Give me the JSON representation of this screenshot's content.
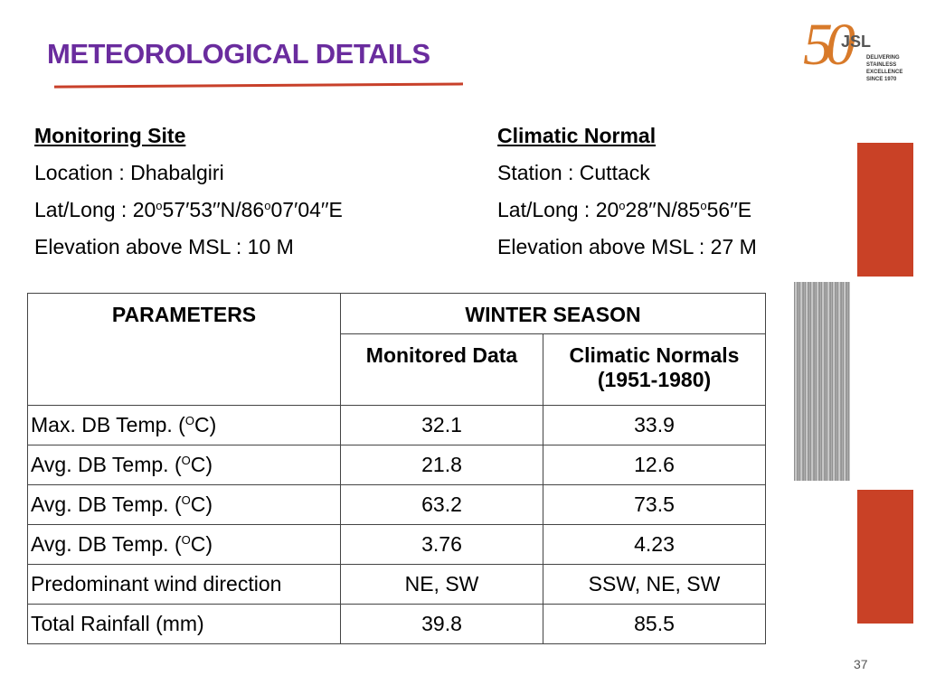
{
  "header": {
    "title": "METEOROLOGICAL DETAILS"
  },
  "logo": {
    "number": "50",
    "brand": "JSL",
    "tagline": [
      "DELIVERING",
      "STAINLESS EXCELLENCE",
      "SINCE 1970"
    ]
  },
  "monitoring_site": {
    "heading": "Monitoring Site",
    "location": "Location  :  Dhabalgiri",
    "lat_long": [
      "Lat/Long :  20",
      "o",
      "57′53′′N/86",
      "o",
      "07′04′′E"
    ],
    "elevation": "Elevation above MSL : 10 M"
  },
  "climatic_normal": {
    "heading": "Climatic Normal",
    "station": "Station  : Cuttack",
    "lat_long": [
      "Lat/Long :  20",
      "o",
      "28′′N/85",
      "o",
      "56′′E"
    ],
    "elevation": "Elevation above MSL : 27 M"
  },
  "table": {
    "header": {
      "parameters": "PARAMETERS",
      "season": "WINTER SEASON",
      "monitored": "Monitored Data",
      "normals": [
        "Climatic Normals",
        "(1951-1980)"
      ]
    },
    "rows": [
      [
        [
          "Max. DB Temp. (",
          "O",
          "C)"
        ],
        "32.1",
        "33.9"
      ],
      [
        [
          "Avg. DB Temp. (",
          "O",
          "C)"
        ],
        "21.8",
        "12.6"
      ],
      [
        [
          "Avg. DB Temp. (",
          "O",
          "C)"
        ],
        "63.2",
        "73.5"
      ],
      [
        [
          "Avg. DB Temp. (",
          "O",
          "C)"
        ],
        "3.76",
        "4.23"
      ],
      [
        [
          "Predominant wind direction"
        ],
        "NE, SW",
        "SSW, NE, SW"
      ],
      [
        [
          "Total Rainfall (mm)"
        ],
        "39.8",
        "85.5"
      ]
    ]
  },
  "page_number": "37"
}
